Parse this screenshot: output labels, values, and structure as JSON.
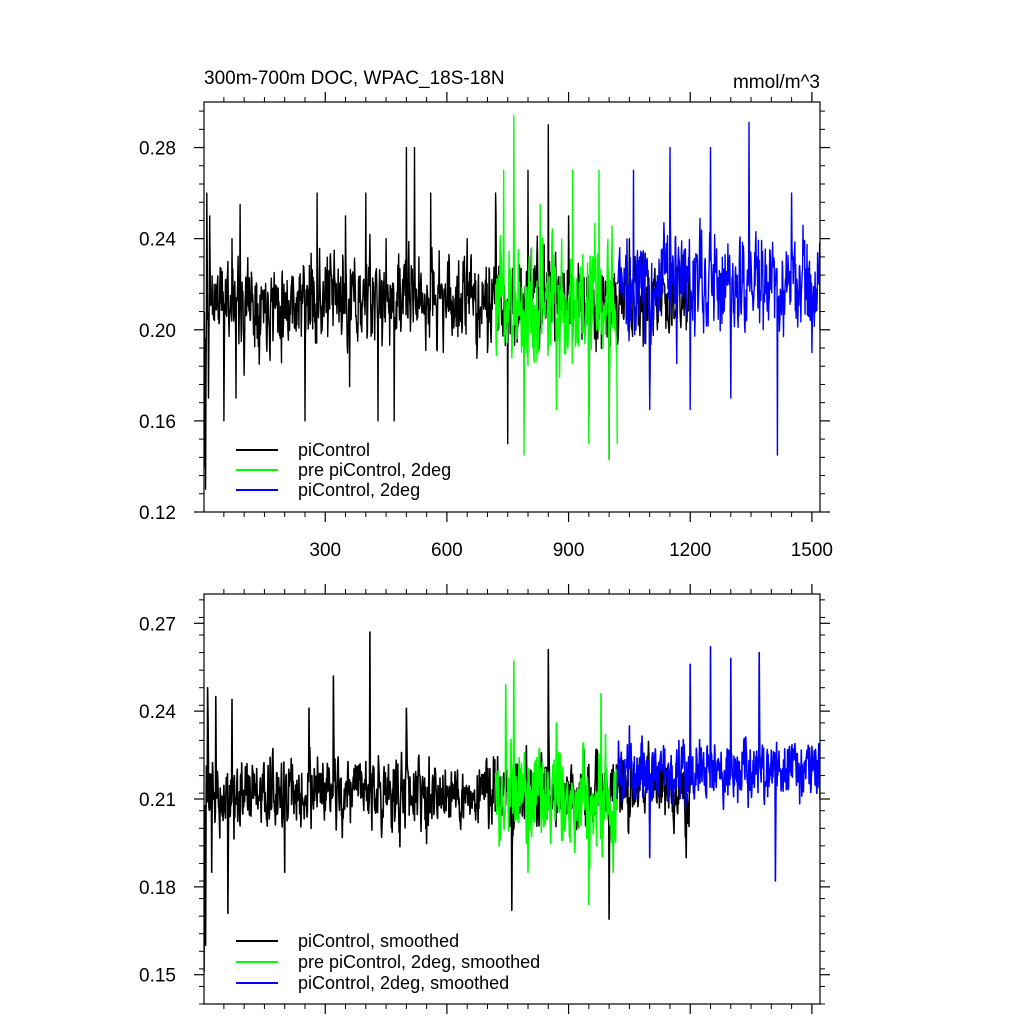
{
  "chart_data": [
    {
      "type": "line",
      "title": "300m-700m DOC, WPAC_18S-18N",
      "units": "mmol/m^3",
      "xlabel": "",
      "ylabel": "",
      "xlim": [
        1,
        1520
      ],
      "ylim": [
        0.12,
        0.3
      ],
      "xticks": [
        300,
        600,
        900,
        1200,
        1500
      ],
      "yticks": [
        0.12,
        0.16,
        0.2,
        0.24,
        0.28
      ],
      "ytick_labels": [
        "0.12",
        "0.16",
        "0.20",
        "0.24",
        "0.28"
      ],
      "legend_position": "bottom-left",
      "grid": false,
      "series": [
        {
          "name": "piControl",
          "color": "#000000",
          "x_range": [
            1,
            1200
          ],
          "baseline": 0.213,
          "noise": 0.026,
          "seed": 11,
          "values": [
            [
              1,
              0.19
            ],
            [
              3,
              0.14
            ],
            [
              5,
              0.13
            ],
            [
              8,
              0.26
            ],
            [
              12,
              0.17
            ],
            [
              15,
              0.25
            ],
            [
              30,
              0.22
            ],
            [
              50,
              0.16
            ],
            [
              60,
              0.23
            ],
            [
              70,
              0.24
            ],
            [
              80,
              0.17
            ],
            [
              90,
              0.255
            ],
            [
              100,
              0.18
            ],
            [
              200,
              0.21
            ],
            [
              250,
              0.16
            ],
            [
              280,
              0.26
            ],
            [
              350,
              0.25
            ],
            [
              360,
              0.175
            ],
            [
              400,
              0.26
            ],
            [
              430,
              0.16
            ],
            [
              450,
              0.24
            ],
            [
              470,
              0.16
            ],
            [
              500,
              0.28
            ],
            [
              520,
              0.28
            ],
            [
              560,
              0.26
            ],
            [
              600,
              0.21
            ],
            [
              650,
              0.24
            ],
            [
              700,
              0.19
            ],
            [
              720,
              0.26
            ],
            [
              750,
              0.15
            ],
            [
              800,
              0.27
            ],
            [
              850,
              0.29
            ],
            [
              900,
              0.25
            ],
            [
              950,
              0.16
            ],
            [
              1000,
              0.143
            ],
            [
              1050,
              0.24
            ],
            [
              1100,
              0.17
            ],
            [
              1150,
              0.26
            ],
            [
              1190,
              0.2
            ]
          ]
        },
        {
          "name": "pre piControl, 2deg",
          "color": "#00ff00",
          "x_range": [
            720,
            1020
          ],
          "baseline": 0.21,
          "noise": 0.036,
          "seed": 23,
          "values": [
            [
              720,
              0.22
            ],
            [
              740,
              0.27
            ],
            [
              765,
              0.294
            ],
            [
              790,
              0.145
            ],
            [
              830,
              0.255
            ],
            [
              870,
              0.165
            ],
            [
              910,
              0.27
            ],
            [
              950,
              0.15
            ],
            [
              975,
              0.27
            ],
            [
              1000,
              0.143
            ],
            [
              1020,
              0.15
            ]
          ]
        },
        {
          "name": "piControl, 2deg",
          "color": "#0000ff",
          "x_range": [
            1020,
            1520
          ],
          "baseline": 0.22,
          "noise": 0.03,
          "seed": 37,
          "values": [
            [
              1020,
              0.22
            ],
            [
              1060,
              0.27
            ],
            [
              1100,
              0.165
            ],
            [
              1150,
              0.28
            ],
            [
              1200,
              0.165
            ],
            [
              1250,
              0.28
            ],
            [
              1300,
              0.17
            ],
            [
              1345,
              0.291
            ],
            [
              1380,
              0.2
            ],
            [
              1415,
              0.145
            ],
            [
              1450,
              0.26
            ],
            [
              1500,
              0.19
            ],
            [
              1520,
              0.2
            ]
          ]
        }
      ]
    },
    {
      "type": "line",
      "title": "",
      "xlabel": "",
      "ylabel": "",
      "xlim": [
        1,
        1520
      ],
      "ylim": [
        0.14,
        0.28
      ],
      "xticks": [
        300,
        600,
        900,
        1200,
        1500
      ],
      "yticks": [
        0.15,
        0.18,
        0.21,
        0.24,
        0.27
      ],
      "ytick_labels": [
        "0.15",
        "0.18",
        "0.21",
        "0.24",
        "0.27"
      ],
      "legend_position": "bottom-left",
      "grid": false,
      "series": [
        {
          "name": "piControl, smoothed",
          "color": "#000000",
          "x_range": [
            1,
            1200
          ],
          "baseline": 0.212,
          "noise": 0.016,
          "seed": 53,
          "values": [
            [
              1,
              0.151
            ],
            [
              5,
              0.16
            ],
            [
              10,
              0.248
            ],
            [
              20,
              0.185
            ],
            [
              30,
              0.245
            ],
            [
              60,
              0.171
            ],
            [
              70,
              0.244
            ],
            [
              200,
              0.185
            ],
            [
              260,
              0.241
            ],
            [
              320,
              0.252
            ],
            [
              410,
              0.267
            ],
            [
              500,
              0.241
            ],
            [
              760,
              0.172
            ],
            [
              850,
              0.261
            ],
            [
              1000,
              0.169
            ],
            [
              1190,
              0.19
            ]
          ]
        },
        {
          "name": "pre piControl, 2deg, smoothed",
          "color": "#00ff00",
          "x_range": [
            720,
            1020
          ],
          "baseline": 0.21,
          "noise": 0.021,
          "seed": 71,
          "values": [
            [
              720,
              0.219
            ],
            [
              745,
              0.249
            ],
            [
              765,
              0.257
            ],
            [
              800,
              0.185
            ],
            [
              870,
              0.236
            ],
            [
              950,
              0.174
            ],
            [
              980,
              0.246
            ],
            [
              1010,
              0.185
            ]
          ]
        },
        {
          "name": "piControl, 2deg, smoothed",
          "color": "#0000ff",
          "x_range": [
            1020,
            1520
          ],
          "baseline": 0.22,
          "noise": 0.015,
          "seed": 89,
          "values": [
            [
              1020,
              0.21
            ],
            [
              1050,
              0.235
            ],
            [
              1100,
              0.19
            ],
            [
              1200,
              0.256
            ],
            [
              1250,
              0.262
            ],
            [
              1300,
              0.258
            ],
            [
              1370,
              0.26
            ],
            [
              1410,
              0.182
            ],
            [
              1450,
              0.226
            ],
            [
              1500,
              0.228
            ],
            [
              1520,
              0.21
            ]
          ]
        }
      ]
    }
  ]
}
